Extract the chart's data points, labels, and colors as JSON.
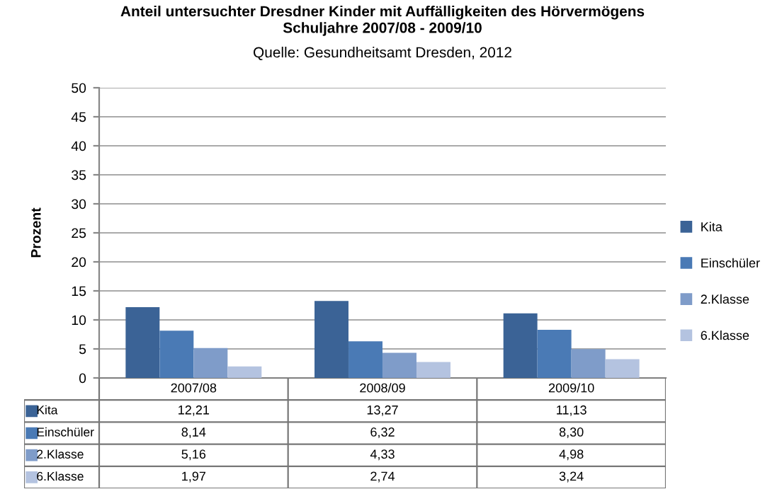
{
  "chart_data": {
    "type": "bar",
    "title": "Anteil untersuchter Dresdner Kinder mit Auffälligkeiten des Hörvermögens\nSchuljahre 2007/08 - 2009/10",
    "annotations": [
      "Quelle: Gesundheitsamt Dresden, 2012"
    ],
    "ylabel": "Prozent",
    "categories": [
      "2007/08",
      "2008/09",
      "2009/10"
    ],
    "series": [
      {
        "name": "Kita",
        "color": "#3b6396",
        "values": [
          12.21,
          13.27,
          11.13
        ],
        "value_labels": [
          "12,21",
          "13,27",
          "11,13"
        ]
      },
      {
        "name": "Einschüler",
        "color": "#4a7ab5",
        "values": [
          8.14,
          6.32,
          8.3
        ],
        "value_labels": [
          "8,14",
          "6,32",
          "8,30"
        ]
      },
      {
        "name": "2.Klasse",
        "color": "#7f9cc9",
        "values": [
          5.16,
          4.33,
          4.98
        ],
        "value_labels": [
          "5,16",
          "4,33",
          "4,98"
        ]
      },
      {
        "name": "6.Klasse",
        "color": "#b4c3e0",
        "values": [
          1.97,
          2.74,
          3.24
        ],
        "value_labels": [
          "1,97",
          "2,74",
          "3,24"
        ]
      }
    ],
    "ylim": [
      0,
      50
    ],
    "yticks": [
      0,
      5,
      10,
      15,
      20,
      25,
      30,
      35,
      40,
      45,
      50
    ],
    "grid": "y",
    "legend": "right"
  }
}
